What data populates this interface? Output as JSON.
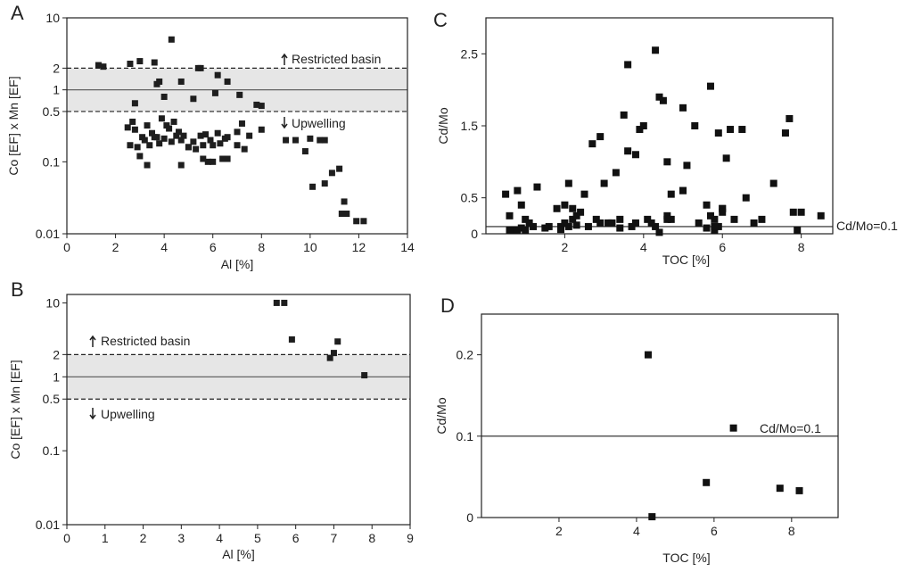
{
  "chart_data": [
    {
      "panel": "A",
      "type": "scatter",
      "xlabel": "Al [%]",
      "ylabel": "Co [EF] x Mn [EF]",
      "xlim": [
        0,
        14
      ],
      "ylim": [
        0.01,
        10
      ],
      "yscale": "log",
      "xticks": [
        "0",
        "2",
        "4",
        "6",
        "8",
        "10",
        "12",
        "14"
      ],
      "yticks": [
        {
          "v": 10,
          "label": "10"
        },
        {
          "v": 2,
          "label": "2"
        },
        {
          "v": 1,
          "label": "1"
        },
        {
          "v": 0.5,
          "label": "0.5"
        },
        {
          "v": 0.1,
          "label": "0.1"
        },
        {
          "v": 0.01,
          "label": "0.01"
        }
      ],
      "band": [
        0.5,
        2
      ],
      "solid_lines": [
        1
      ],
      "dashed_lines": [
        0.5,
        2
      ],
      "annotations": [
        "Restricted basin",
        "Upwelling"
      ],
      "x": [
        1.3,
        1.5,
        2.6,
        3.0,
        2.8,
        3.6,
        3.8,
        3.7,
        4.0,
        4.3,
        4.7,
        5.2,
        5.4,
        5.5,
        6.1,
        6.2,
        6.6,
        7.1,
        7.8,
        8.0,
        2.5,
        2.7,
        2.8,
        3.1,
        3.3,
        3.5,
        3.7,
        3.9,
        4.1,
        4.2,
        4.4,
        4.6,
        4.8,
        5.0,
        5.2,
        5.5,
        5.7,
        6.0,
        6.2,
        6.6,
        7.0,
        7.2,
        7.5,
        2.6,
        2.9,
        3.2,
        3.4,
        3.6,
        3.8,
        4.0,
        4.3,
        4.5,
        4.7,
        5.0,
        5.3,
        5.6,
        5.9,
        6.3,
        6.5,
        7.0,
        7.3,
        8.0,
        9.0,
        9.4,
        9.8,
        10.0,
        10.4,
        10.6,
        3.0,
        3.3,
        4.7,
        5.6,
        5.8,
        6.0,
        6.4,
        6.6,
        10.1,
        10.6,
        10.9,
        11.2,
        11.3,
        11.5,
        11.9,
        12.2,
        11.4
      ],
      "y": [
        2.2,
        2.1,
        2.3,
        2.5,
        0.65,
        2.4,
        1.3,
        1.2,
        0.8,
        5.0,
        1.3,
        0.75,
        2.0,
        2.0,
        0.9,
        1.6,
        1.3,
        0.85,
        0.62,
        0.6,
        0.3,
        0.36,
        0.28,
        0.22,
        0.32,
        0.25,
        0.22,
        0.4,
        0.32,
        0.29,
        0.36,
        0.26,
        0.23,
        0.16,
        0.19,
        0.23,
        0.24,
        0.17,
        0.25,
        0.22,
        0.26,
        0.34,
        0.23,
        0.17,
        0.16,
        0.2,
        0.17,
        0.22,
        0.18,
        0.21,
        0.19,
        0.23,
        0.2,
        0.16,
        0.15,
        0.17,
        0.2,
        0.18,
        0.21,
        0.17,
        0.15,
        0.28,
        0.2,
        0.2,
        0.14,
        0.21,
        0.2,
        0.2,
        0.12,
        0.09,
        0.09,
        0.11,
        0.1,
        0.1,
        0.11,
        0.11,
        0.045,
        0.05,
        0.07,
        0.08,
        0.019,
        0.019,
        0.015,
        0.015,
        0.028
      ]
    },
    {
      "panel": "B",
      "type": "scatter",
      "xlabel": "Al [%]",
      "ylabel": "Co [EF] x Mn [EF]",
      "xlim": [
        0,
        9
      ],
      "ylim": [
        0.01,
        13
      ],
      "yscale": "log",
      "xticks": [
        "0",
        "1",
        "2",
        "3",
        "4",
        "5",
        "6",
        "7",
        "8",
        "9"
      ],
      "yticks": [
        {
          "v": 10,
          "label": "10"
        },
        {
          "v": 2,
          "label": "2"
        },
        {
          "v": 1,
          "label": "1"
        },
        {
          "v": 0.5,
          "label": "0.5"
        },
        {
          "v": 0.1,
          "label": "0.1"
        },
        {
          "v": 0.01,
          "label": "0.01"
        }
      ],
      "band": [
        0.5,
        2
      ],
      "solid_lines": [
        1
      ],
      "dashed_lines": [
        0.5,
        2
      ],
      "annotations": [
        "Restricted basin",
        "Upwelling"
      ],
      "x": [
        5.5,
        5.7,
        5.9,
        6.9,
        7.0,
        7.1,
        7.8
      ],
      "y": [
        10,
        10,
        3.2,
        1.8,
        2.1,
        3.0,
        1.05
      ]
    },
    {
      "panel": "C",
      "type": "scatter",
      "xlabel": "TOC [%]",
      "ylabel": "Cd/Mo",
      "xlim": [
        0,
        8.8
      ],
      "ylim": [
        0,
        3.0
      ],
      "xticks": [
        {
          "v": 2,
          "label": "2"
        },
        {
          "v": 4,
          "label": "4"
        },
        {
          "v": 6,
          "label": "6"
        },
        {
          "v": 8,
          "label": "8"
        }
      ],
      "yticks": [
        {
          "v": 0,
          "label": "0"
        },
        {
          "v": 0.5,
          "label": "0.5"
        },
        {
          "v": 1.5,
          "label": "1.5"
        },
        {
          "v": 2.5,
          "label": "2.5"
        }
      ],
      "ref_line": 0.1,
      "ref_label": "Cd/Mo=0.1",
      "x": [
        0.5,
        0.6,
        0.8,
        0.9,
        1.0,
        1.1,
        1.3,
        1.8,
        2.0,
        2.1,
        2.2,
        2.5,
        2.7,
        2.9,
        3.0,
        3.3,
        3.5,
        3.6,
        3.8,
        3.9,
        4.0,
        4.3,
        4.4,
        4.5,
        4.6,
        4.7,
        5.0,
        5.1,
        5.3,
        5.7,
        5.9,
        6.1,
        6.2,
        6.5,
        7.3,
        7.6,
        7.7,
        7.9,
        8.0,
        8.5,
        0.7,
        0.9,
        1.2,
        1.6,
        2.0,
        2.2,
        2.4,
        2.6,
        2.8,
        3.1,
        3.4,
        3.8,
        4.1,
        4.3,
        4.6,
        5.0,
        5.4,
        5.8,
        6.0,
        6.3,
        6.8,
        7.0,
        0.6,
        1.0,
        1.5,
        1.9,
        2.3,
        2.9,
        3.2,
        3.7,
        4.2,
        4.4,
        4.7,
        5.6,
        5.8,
        5.9,
        6.0,
        7.8,
        0.8,
        1.9,
        2.1,
        3.4,
        4.6,
        5.7,
        5.8,
        6.0,
        6.6,
        2.3,
        3.6,
        5.0,
        5.6
      ],
      "y": [
        0.55,
        0.25,
        0.6,
        0.4,
        0.2,
        0.15,
        0.65,
        0.35,
        0.4,
        0.7,
        0.35,
        0.55,
        1.25,
        1.35,
        0.7,
        0.85,
        1.65,
        2.35,
        1.1,
        1.45,
        1.5,
        2.55,
        1.9,
        1.85,
        1.0,
        0.55,
        1.75,
        0.95,
        1.5,
        2.05,
        1.4,
        1.05,
        1.45,
        1.45,
        0.7,
        1.4,
        1.6,
        0.05,
        0.3,
        0.25,
        0.05,
        0.08,
        0.1,
        0.1,
        0.15,
        0.2,
        0.3,
        0.1,
        0.2,
        0.15,
        0.2,
        0.15,
        0.2,
        0.1,
        0.25,
        0.6,
        0.15,
        0.2,
        0.35,
        0.2,
        0.15,
        0.2,
        0.05,
        0.05,
        0.08,
        0.1,
        0.12,
        0.15,
        0.15,
        0.1,
        0.15,
        0.02,
        0.2,
        0.08,
        0.05,
        0.1,
        0.35,
        0.3,
        0.05,
        0.06,
        0.1,
        0.08,
        0.2,
        0.25,
        0.1,
        0.3,
        0.5,
        0.25,
        1.15,
        0.6,
        0.4
      ]
    },
    {
      "panel": "D",
      "type": "scatter",
      "xlabel": "TOC [%]",
      "ylabel": "Cd/Mo",
      "xlim": [
        0,
        9.2
      ],
      "ylim": [
        0,
        0.25
      ],
      "xticks": [
        {
          "v": 2,
          "label": "2"
        },
        {
          "v": 4,
          "label": "4"
        },
        {
          "v": 6,
          "label": "6"
        },
        {
          "v": 8,
          "label": "8"
        }
      ],
      "yticks": [
        {
          "v": 0,
          "label": "0"
        },
        {
          "v": 0.1,
          "label": "0.1"
        },
        {
          "v": 0.2,
          "label": "0.2"
        }
      ],
      "ref_line": 0.1,
      "ref_label": "Cd/Mo=0.1",
      "x": [
        4.3,
        4.4,
        6.5,
        5.8,
        7.7,
        8.2
      ],
      "y": [
        0.2,
        0.001,
        0.11,
        0.043,
        0.036,
        0.033
      ]
    }
  ]
}
